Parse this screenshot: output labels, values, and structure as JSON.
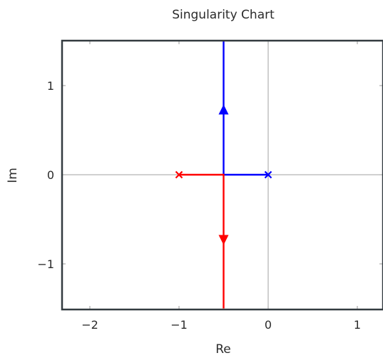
{
  "chart_data": {
    "type": "line",
    "title": "Singularity Chart",
    "xlabel": "Re",
    "ylabel": "Im",
    "xlim": [
      -2.3,
      1.3
    ],
    "ylim": [
      -1.5,
      1.5
    ],
    "x_ticks": [
      -2,
      -1,
      0,
      1
    ],
    "y_ticks": [
      -1,
      0,
      1
    ],
    "x_tick_labels": [
      "−2",
      "−1",
      "0",
      "1"
    ],
    "y_tick_labels": [
      "−1",
      "0",
      "1"
    ],
    "grid": "zero-lines",
    "series": [
      {
        "color": "#0000ff",
        "points": [
          [
            0,
            0
          ],
          [
            -0.5,
            0
          ],
          [
            -0.5,
            1.5
          ]
        ],
        "pole": [
          0,
          0
        ],
        "arrow": {
          "at": [
            -0.5,
            0.7
          ],
          "direction": "up"
        }
      },
      {
        "color": "#ff0000",
        "points": [
          [
            -1,
            0
          ],
          [
            -0.5,
            0
          ],
          [
            -0.5,
            -1.5
          ]
        ],
        "pole": [
          -1,
          0
        ],
        "arrow": {
          "at": [
            -0.5,
            -0.7
          ],
          "direction": "down"
        }
      }
    ],
    "colors": {
      "axis": "#333b40",
      "zero_line": "#a0a0a0",
      "text": "#2b2b2b"
    }
  }
}
